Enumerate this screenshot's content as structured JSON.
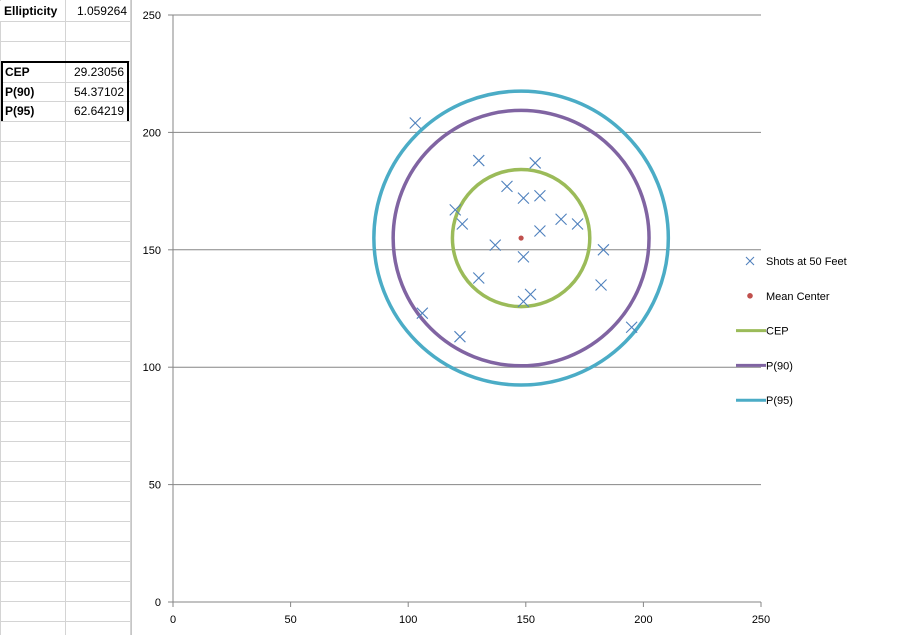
{
  "sheet": {
    "ellipticity": {
      "label": "Ellipticity",
      "value": "1.059264"
    },
    "stats": [
      {
        "label": "CEP",
        "value": "29.23056"
      },
      {
        "label": "P(90)",
        "value": "54.37102"
      },
      {
        "label": "P(95)",
        "value": "62.64219"
      }
    ]
  },
  "chart_data": {
    "type": "scatter",
    "xlim": [
      0,
      250
    ],
    "ylim": [
      0,
      250
    ],
    "x_ticks": [
      0,
      50,
      100,
      150,
      200,
      250
    ],
    "y_ticks": [
      0,
      50,
      100,
      150,
      200,
      250
    ],
    "grid": "horizontal",
    "legend_position": "right",
    "series": [
      {
        "name": "Shots at 50 Feet",
        "kind": "points",
        "marker": "x",
        "color": "#4f81bd",
        "points": [
          [
            103,
            204
          ],
          [
            130,
            188
          ],
          [
            154,
            187
          ],
          [
            142,
            177
          ],
          [
            149,
            172
          ],
          [
            156,
            173
          ],
          [
            120,
            167
          ],
          [
            123,
            161
          ],
          [
            165,
            163
          ],
          [
            172,
            161
          ],
          [
            156,
            158
          ],
          [
            137,
            152
          ],
          [
            149,
            147
          ],
          [
            183,
            150
          ],
          [
            130,
            138
          ],
          [
            182,
            135
          ],
          [
            149,
            128
          ],
          [
            152,
            131
          ],
          [
            106,
            123
          ],
          [
            195,
            117
          ],
          [
            122,
            113
          ]
        ]
      },
      {
        "name": "Mean Center",
        "kind": "points",
        "marker": "dot",
        "color": "#c0504d",
        "points": [
          [
            148,
            155
          ]
        ]
      },
      {
        "name": "CEP",
        "kind": "circle",
        "color": "#9bbb59",
        "center": [
          148,
          155
        ],
        "rx": 29.2,
        "ry": 29.2
      },
      {
        "name": "P(90)",
        "kind": "circle",
        "color": "#8064a2",
        "center": [
          148,
          155
        ],
        "rx": 54.4,
        "ry": 54.4
      },
      {
        "name": "P(95)",
        "kind": "circle",
        "color": "#4bacc6",
        "center": [
          148,
          155
        ],
        "rx": 62.6,
        "ry": 62.6
      }
    ]
  }
}
